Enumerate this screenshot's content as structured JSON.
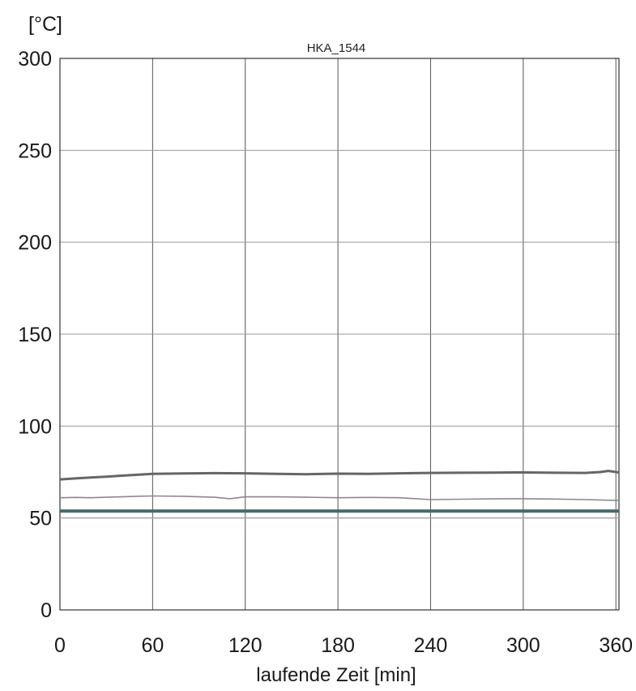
{
  "chart_data": {
    "type": "line",
    "title": "HKA_1544",
    "ylabel": "[°C]",
    "xlabel": "laufende Zeit [min]",
    "xlim": [
      0,
      362
    ],
    "ylim": [
      0,
      300
    ],
    "x_ticks": [
      0,
      60,
      120,
      180,
      240,
      300,
      360
    ],
    "y_ticks": [
      0,
      50,
      100,
      150,
      200,
      250,
      300
    ],
    "grid": true,
    "series": [
      {
        "color": "#666666",
        "x": [
          0,
          10,
          20,
          30,
          40,
          50,
          60,
          80,
          100,
          120,
          140,
          160,
          180,
          200,
          220,
          240,
          260,
          280,
          300,
          320,
          340,
          350,
          355,
          362
        ],
        "y": [
          71.0,
          71.5,
          72.0,
          72.5,
          73.0,
          73.5,
          74.0,
          74.2,
          74.4,
          74.3,
          74.0,
          73.8,
          74.1,
          74.0,
          74.3,
          74.5,
          74.6,
          74.7,
          74.8,
          74.6,
          74.5,
          75.0,
          75.6,
          74.8
        ]
      },
      {
        "color": "#8a8a8a",
        "x": [
          0,
          10,
          20,
          30,
          40,
          50,
          60,
          80,
          100,
          110,
          120,
          140,
          160,
          180,
          200,
          220,
          240,
          260,
          280,
          300,
          320,
          340,
          362
        ],
        "y": [
          61.0,
          61.2,
          61.0,
          61.3,
          61.5,
          61.8,
          62.0,
          61.8,
          61.3,
          60.5,
          61.5,
          61.5,
          61.3,
          61.0,
          61.2,
          61.0,
          60.0,
          60.2,
          60.4,
          60.5,
          60.3,
          60.0,
          59.5
        ]
      },
      {
        "color": "#4a6a6a",
        "x": [
          0,
          362
        ],
        "y": [
          53.8,
          53.8
        ]
      }
    ],
    "reference_lines": [
      {
        "color": "#a8a8a8",
        "y": 50.0
      }
    ]
  }
}
